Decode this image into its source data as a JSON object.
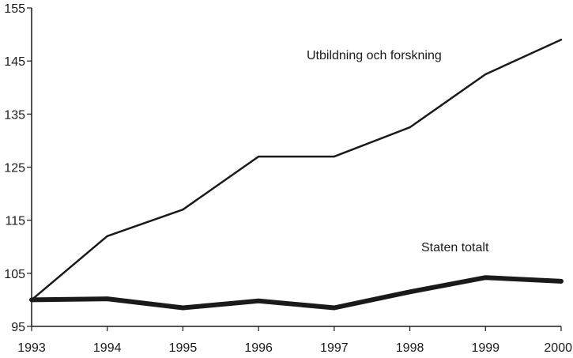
{
  "chart_data": {
    "type": "line",
    "x": [
      1993,
      1994,
      1995,
      1996,
      1997,
      1998,
      1999,
      2000
    ],
    "x_tick_labels": [
      "1993",
      "1994",
      "1995",
      "1996",
      "1997",
      "1998",
      "1999",
      "2000"
    ],
    "y_tick_labels": [
      "95",
      "105",
      "115",
      "125",
      "135",
      "145",
      "155"
    ],
    "y_ticks": [
      95,
      105,
      115,
      125,
      135,
      145,
      155
    ],
    "xlim": [
      1993,
      2000
    ],
    "ylim": [
      95,
      155
    ],
    "grid": false,
    "legend": "none",
    "title": "",
    "xlabel": "",
    "ylabel": "",
    "series": [
      {
        "name": "Utbildning och forskning",
        "values": [
          100,
          112,
          117,
          127,
          127,
          132.5,
          142.5,
          149
        ],
        "color": "#1a1a1a",
        "weight": "thin"
      },
      {
        "name": "Staten totalt",
        "values": [
          100,
          100.2,
          98.5,
          99.8,
          98.5,
          101.5,
          104.2,
          103.5
        ],
        "color": "#1a1a1a",
        "weight": "thick"
      }
    ]
  }
}
